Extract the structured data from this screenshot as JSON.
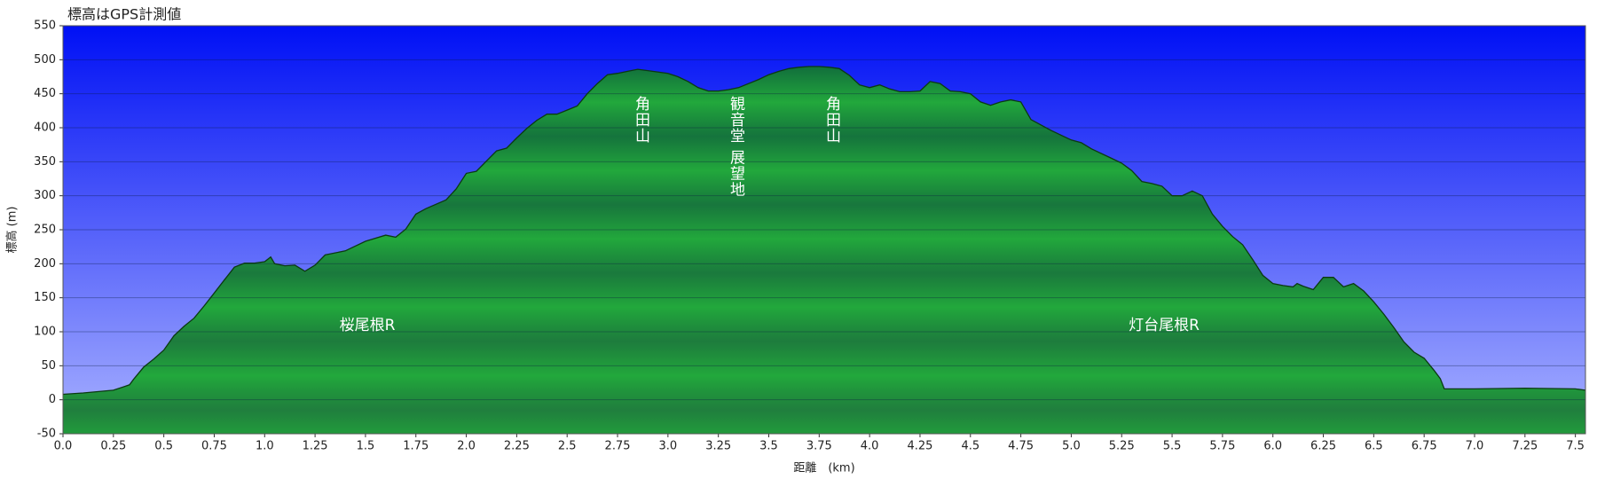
{
  "chart_data": {
    "type": "area",
    "title": "標高はGPS計測値",
    "y_label": "標高 (m)",
    "x_label": "距離　(km)",
    "color": "#22a83c",
    "line_color": "#0b3a12",
    "background_colors": [
      "#0010f5",
      "#a9b2ff"
    ],
    "grid": true,
    "xlim": [
      0,
      7.55
    ],
    "ylim": [
      -50,
      550
    ],
    "yticks": [
      -50,
      0,
      50,
      100,
      150,
      200,
      250,
      300,
      350,
      400,
      450,
      500,
      550
    ],
    "xticks": [
      {
        "value": 0,
        "label": "0.0"
      },
      0.25,
      0.5,
      0.75,
      {
        "value": 1,
        "label": "1.0"
      },
      1.25,
      1.5,
      1.75,
      {
        "value": 2,
        "label": "2.0"
      },
      2.25,
      2.5,
      2.75,
      {
        "value": 3,
        "label": "3.0"
      },
      3.25,
      3.5,
      3.75,
      {
        "value": 4,
        "label": "4.0"
      },
      4.25,
      4.5,
      4.75,
      {
        "value": 5,
        "label": "5.0"
      },
      5.25,
      5.5,
      5.75,
      {
        "value": 6,
        "label": "6.0"
      },
      6.25,
      6.5,
      6.75,
      {
        "value": 7,
        "label": "7.0"
      },
      7.25,
      7.5
    ],
    "x": [
      0,
      0.1,
      0.25,
      0.3,
      0.33,
      0.35,
      0.4,
      0.45,
      0.5,
      0.55,
      0.6,
      0.65,
      0.7,
      0.75,
      0.8,
      0.85,
      0.9,
      0.95,
      1.0,
      1.03,
      1.05,
      1.1,
      1.15,
      1.2,
      1.25,
      1.3,
      1.4,
      1.5,
      1.6,
      1.65,
      1.7,
      1.75,
      1.8,
      1.9,
      1.95,
      2.0,
      2.05,
      2.1,
      2.15,
      2.2,
      2.25,
      2.3,
      2.35,
      2.4,
      2.45,
      2.5,
      2.55,
      2.6,
      2.65,
      2.7,
      2.75,
      2.8,
      2.85,
      2.9,
      3.0,
      3.05,
      3.1,
      3.15,
      3.2,
      3.25,
      3.3,
      3.35,
      3.4,
      3.45,
      3.5,
      3.55,
      3.6,
      3.65,
      3.7,
      3.75,
      3.8,
      3.85,
      3.9,
      3.95,
      4.0,
      4.05,
      4.1,
      4.15,
      4.2,
      4.25,
      4.3,
      4.35,
      4.4,
      4.45,
      4.5,
      4.55,
      4.6,
      4.65,
      4.7,
      4.75,
      4.8,
      4.9,
      5.0,
      5.05,
      5.1,
      5.2,
      5.25,
      5.3,
      5.35,
      5.4,
      5.45,
      5.5,
      5.55,
      5.6,
      5.65,
      5.7,
      5.75,
      5.8,
      5.85,
      5.9,
      5.95,
      6.0,
      6.05,
      6.1,
      6.12,
      6.15,
      6.2,
      6.25,
      6.3,
      6.35,
      6.4,
      6.45,
      6.5,
      6.55,
      6.6,
      6.65,
      6.7,
      6.75,
      6.8,
      6.83,
      6.85,
      6.9,
      7.0,
      7.25,
      7.5,
      7.55
    ],
    "values": [
      8,
      10,
      14,
      19,
      22,
      30,
      48,
      60,
      73,
      94,
      108,
      120,
      138,
      157,
      176,
      195,
      201,
      201,
      203,
      210,
      200,
      197,
      198,
      189,
      198,
      213,
      219,
      233,
      242,
      239,
      251,
      273,
      281,
      294,
      310,
      333,
      336,
      351,
      366,
      370,
      385,
      399,
      411,
      420,
      420,
      426,
      432,
      450,
      465,
      478,
      480,
      483,
      486,
      484,
      480,
      475,
      468,
      459,
      454,
      454,
      456,
      459,
      465,
      471,
      478,
      483,
      487,
      489,
      490,
      490,
      489,
      487,
      477,
      463,
      459,
      463,
      457,
      453,
      453,
      454,
      468,
      465,
      454,
      453,
      450,
      438,
      433,
      438,
      441,
      438,
      412,
      396,
      382,
      378,
      369,
      355,
      348,
      337,
      321,
      318,
      314,
      300,
      300,
      307,
      300,
      273,
      255,
      240,
      228,
      206,
      183,
      171,
      168,
      166,
      171,
      167,
      162,
      180,
      180,
      166,
      171,
      160,
      144,
      126,
      106,
      85,
      70,
      61,
      43,
      31,
      16,
      16,
      16,
      17,
      16,
      14
    ],
    "annotations": [
      "桜尾根R",
      "角田山",
      "観音堂 展望地",
      "角田山",
      "灯台尾根R"
    ]
  }
}
